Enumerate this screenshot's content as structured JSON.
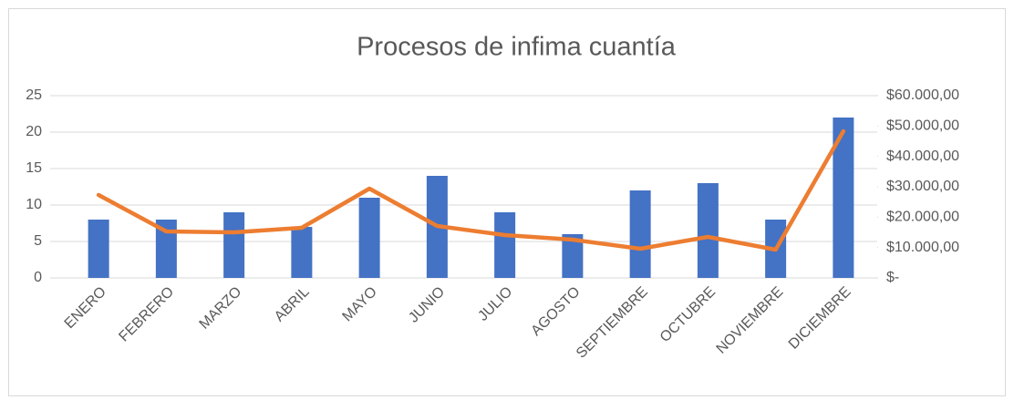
{
  "chart_data": {
    "type": "bar-line",
    "title": "Procesos de infima cuantía",
    "categories": [
      "ENERO",
      "FEBRERO",
      "MARZO",
      "ABRIL",
      "MAYO",
      "JUNIO",
      "JULIO",
      "AGOSTO",
      "SEPTIEMBRE",
      "OCTUBRE",
      "NOVIEMBRE",
      "DICIEMBRE"
    ],
    "series": [
      {
        "type": "bar",
        "color": "#4472c4",
        "values": [
          8,
          8,
          9,
          7,
          11,
          14,
          9,
          6,
          12,
          13,
          8,
          22
        ]
      },
      {
        "type": "line",
        "axis": "y2",
        "color": "#ed7d31",
        "values": [
          27300,
          15300,
          15000,
          16500,
          29400,
          17100,
          14100,
          12600,
          9600,
          13500,
          9300,
          48300
        ]
      }
    ],
    "ylim": [
      0,
      25
    ],
    "yticks": [
      0,
      5,
      10,
      15,
      20,
      25
    ],
    "y2lim": [
      0,
      60000
    ],
    "y2ticks": [
      {
        "value": 0,
        "label": "$-"
      },
      {
        "value": 10000,
        "label": "$10.000,00"
      },
      {
        "value": 20000,
        "label": "$20.000,00"
      },
      {
        "value": 30000,
        "label": "$30.000,00"
      },
      {
        "value": 40000,
        "label": "$40.000,00"
      },
      {
        "value": 50000,
        "label": "$50.000,00"
      },
      {
        "value": 60000,
        "label": "$60.000,00"
      }
    ],
    "grid": true
  }
}
